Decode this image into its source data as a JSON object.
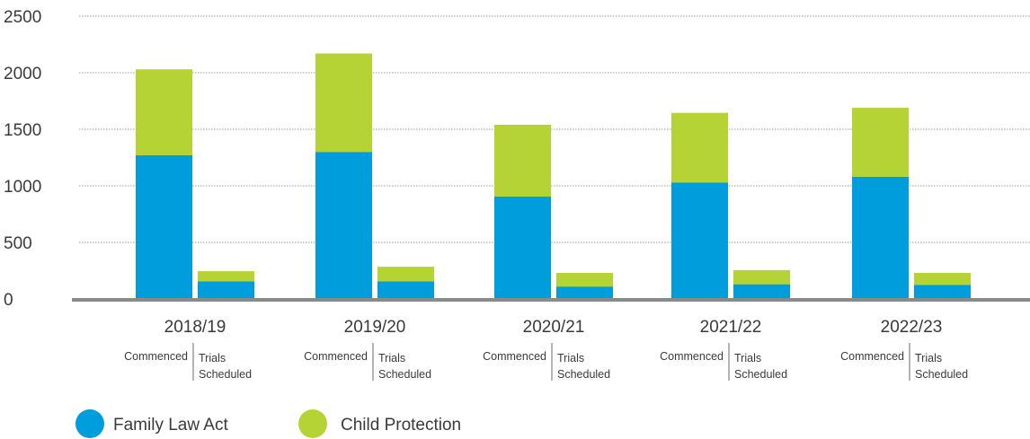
{
  "chart_data": {
    "type": "bar",
    "stacked": true,
    "categories": [
      "2018/19",
      "2019/20",
      "2020/21",
      "2021/22",
      "2022/23"
    ],
    "sub_categories": [
      "Commenced",
      "Trials Scheduled"
    ],
    "sub_category_lines": [
      [
        "Commenced"
      ],
      [
        "Trials",
        "Scheduled"
      ]
    ],
    "series": [
      {
        "name": "Family Law Act",
        "color": "#009ddc",
        "values": [
          [
            1270,
            155
          ],
          [
            1300,
            155
          ],
          [
            905,
            110
          ],
          [
            1030,
            130
          ],
          [
            1080,
            125
          ]
        ]
      },
      {
        "name": "Child Protection",
        "color": "#b5d334",
        "values": [
          [
            760,
            90
          ],
          [
            870,
            130
          ],
          [
            635,
            120
          ],
          [
            615,
            125
          ],
          [
            610,
            105
          ]
        ]
      }
    ],
    "y_ticks": [
      0,
      500,
      1000,
      1500,
      2000,
      2500
    ],
    "ylim": [
      0,
      2500
    ],
    "grid": true,
    "legend_position": "bottom-left",
    "gridline_color": "#9a9a9a",
    "axis_color": "#8a8a8a"
  }
}
